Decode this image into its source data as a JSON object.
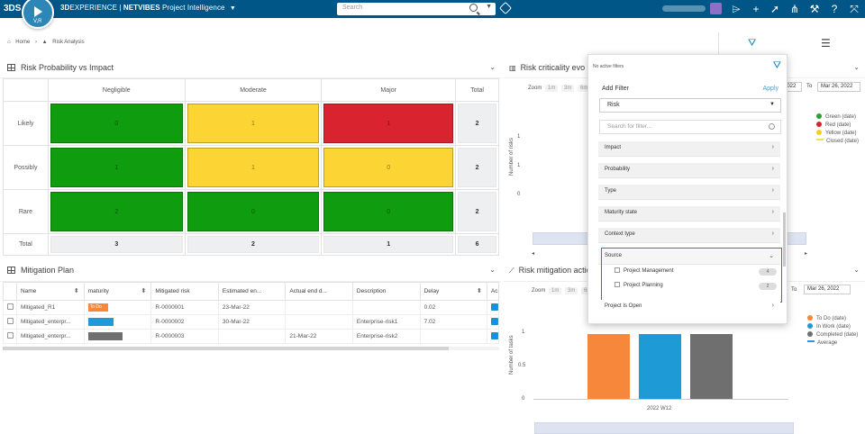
{
  "topbar": {
    "ds_logo": "3DS",
    "compass_version": "V,R",
    "brand_3d": "3D",
    "brand_experience": "EXPERIENCE",
    "brand_separator": "|",
    "brand_netvibes": "NETVIBES",
    "app_name": "Project Intelligence",
    "search_placeholder": "Search",
    "icons": [
      "tag-icon",
      "share-icon",
      "add-icon",
      "publish-icon",
      "network-icon",
      "tools-icon",
      "help-icon",
      "fullscreen-icon"
    ]
  },
  "breadcrumb": {
    "home": "Home",
    "current": "Risk Analysis"
  },
  "matrix_panel": {
    "title": "Risk Probability vs Impact",
    "columns": [
      "Negligible",
      "Moderate",
      "Major",
      "Total"
    ],
    "rows": [
      {
        "label": "Likely",
        "cells": [
          "0",
          "1",
          "1"
        ],
        "total": "2"
      },
      {
        "label": "Possibly",
        "cells": [
          "1",
          "1",
          "0"
        ],
        "total": "2"
      },
      {
        "label": "Rare",
        "cells": [
          "2",
          "0",
          "0"
        ],
        "total": "2"
      }
    ],
    "totals_label": "Total",
    "totals": [
      "3",
      "2",
      "1",
      "6"
    ]
  },
  "criticality_panel": {
    "title": "Risk criticality evo",
    "zoom_label": "Zoom",
    "zoom_options": [
      "1m",
      "3m",
      "6m"
    ],
    "date_from": "2022",
    "to_label": "To",
    "date_to": "Mar 26, 2022",
    "y_label": "Number of risks",
    "legend": [
      {
        "label": "Green (date)",
        "color": "#2c9f2c"
      },
      {
        "label": "Red (date)",
        "color": "#d9232e"
      },
      {
        "label": "Yellow (date)",
        "color": "#f2cd2b"
      },
      {
        "label": "Closed (date)",
        "color": "#f2e14a"
      }
    ]
  },
  "mitigation_panel": {
    "title": "Mitigation Plan",
    "headers": [
      "Name",
      "maturity",
      "Mitigated risk",
      "Estimated en...",
      "Actual end d...",
      "Description",
      "Delay",
      "Ac"
    ],
    "rows": [
      {
        "name": "Mitigated_R1",
        "maturity": "To Do",
        "maturity_color": "#f7883b",
        "risk": "R-0000001",
        "est": "23-Mar-22",
        "actual": "",
        "desc": "",
        "delay": "0.02"
      },
      {
        "name": "Mitigated_enterpr...",
        "maturity": "",
        "maturity_color": "#1e9ad6",
        "risk": "R-0000002",
        "est": "30-Mar-22",
        "actual": "",
        "desc": "Enterprise-risk1",
        "delay": "7.02"
      },
      {
        "name": "Mitigated_enterpr...",
        "maturity": "",
        "maturity_color": "#6f6f6f",
        "risk": "R-0000003",
        "est": "",
        "actual": "21-Mar-22",
        "desc": "Enterprise-risk2",
        "delay": ""
      }
    ]
  },
  "mitigation_chart_panel": {
    "title": "Risk mitigation action",
    "zoom_label": "Zoom",
    "zoom_options": [
      "1m",
      "3m",
      "6m"
    ],
    "to_label": "To",
    "date_to": "Mar 26, 2022",
    "y_label": "Number of tasks",
    "x_category": "2022 W12",
    "y_ticks": [
      "1",
      "0.5",
      "0"
    ],
    "legend": [
      {
        "label": "To Do (date)",
        "color": "#f7883b"
      },
      {
        "label": "In Work (date)",
        "color": "#1e9ad6"
      },
      {
        "label": "Completed (date)",
        "color": "#6f6f6f"
      },
      {
        "label": "Average",
        "color": "#3b8fd9"
      }
    ],
    "bars": [
      {
        "name": "To Do",
        "value": 1,
        "color": "#f7883b"
      },
      {
        "name": "In Work",
        "value": 1,
        "color": "#1e9ad6"
      },
      {
        "name": "Completed",
        "value": 1,
        "color": "#6f6f6f"
      }
    ]
  },
  "filter_panel": {
    "no_active": "No active filters",
    "add_filter": "Add Filter",
    "apply": "Apply",
    "type_select": "Risk",
    "search_placeholder": "Search for filter...",
    "sections": [
      "Impact",
      "Probability",
      "Type",
      "Maturity state",
      "Context type"
    ],
    "source_title": "Source",
    "source_options": [
      {
        "label": "Project Management",
        "count": "4"
      },
      {
        "label": "Project Planning",
        "count": "2"
      }
    ],
    "last_section": "Project Is Open"
  }
}
